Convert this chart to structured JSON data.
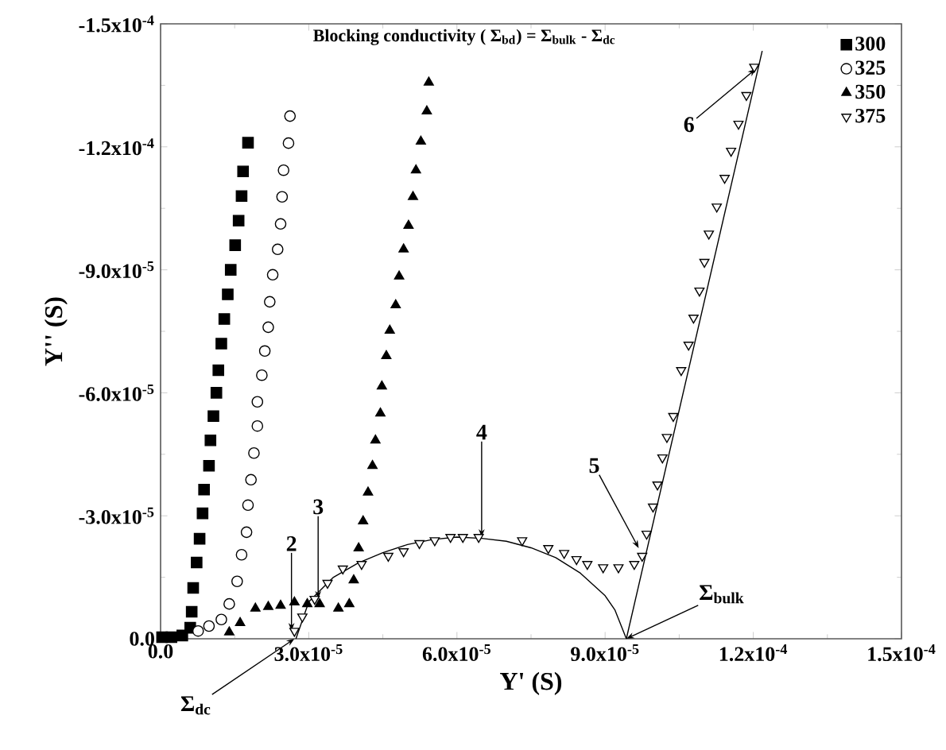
{
  "chart_data": {
    "type": "scatter",
    "title": "Blocking conductivity ( Σ$_{bd}$) = Σ$_{bulk}$ - Σ$_{dc}$",
    "xlabel": "Y' (S)",
    "ylabel": "Y'' (S)",
    "xlim": [
      0,
      0.00015
    ],
    "ylim": [
      0,
      -0.00015
    ],
    "xticks": [
      {
        "value": 0,
        "label": "0.0"
      },
      {
        "value": 3e-05,
        "label": "3.0x10$^{-5}$"
      },
      {
        "value": 6e-05,
        "label": "6.0x10$^{-5}$"
      },
      {
        "value": 9e-05,
        "label": "9.0x10$^{-5}$"
      },
      {
        "value": 0.00012,
        "label": "1.2x10$^{-4}$"
      },
      {
        "value": 0.00015,
        "label": "1.5x10$^{-4}$"
      }
    ],
    "yticks": [
      {
        "value": 0,
        "label": "0.0"
      },
      {
        "value": -3e-05,
        "label": "-3.0x10$^{-5}$"
      },
      {
        "value": -6e-05,
        "label": "-6.0x10$^{-5}$"
      },
      {
        "value": -9e-05,
        "label": "-9.0x10$^{-5}$"
      },
      {
        "value": -0.00012,
        "label": "-1.2x10$^{-4}$"
      },
      {
        "value": -0.00015,
        "label": "-1.5x10$^{-4}$"
      }
    ],
    "legend": "top right",
    "series": [
      {
        "name": "300",
        "color": "#000000",
        "marker": "square",
        "x": [
          1.77e-05,
          1.67e-05,
          1.64e-05,
          1.58e-05,
          1.51e-05,
          1.42e-05,
          1.36e-05,
          1.29e-05,
          1.23e-05,
          1.17e-05,
          1.13e-05,
          1.07e-05,
          1.01e-05,
          9.8e-06,
          8.8e-06,
          8.5e-06,
          7.9e-06,
          7.3e-06,
          6.6e-06,
          6.3e-06,
          6e-06,
          4.4e-06,
          2.2e-06,
          3e-07
        ],
        "values": [
          -0.000121,
          -0.000114,
          -0.000108,
          -0.000102,
          -9.6e-05,
          -9e-05,
          -8.4e-05,
          -7.8e-05,
          -7.2e-05,
          -6.55e-05,
          -6e-05,
          -5.43e-05,
          -4.84e-05,
          -4.22e-05,
          -3.64e-05,
          -3.06e-05,
          -2.44e-05,
          -1.86e-05,
          -1.24e-05,
          -6.6e-06,
          -2.7e-06,
          -8e-07,
          -4e-07,
          -4e-07
        ]
      },
      {
        "name": "325",
        "color": "#ffffff",
        "marker": "circle",
        "x": [
          2.62e-05,
          2.59e-05,
          2.49e-05,
          2.46e-05,
          2.43e-05,
          2.37e-05,
          2.27e-05,
          2.21e-05,
          2.18e-05,
          2.11e-05,
          2.05e-05,
          1.96e-05,
          1.96e-05,
          1.89e-05,
          1.83e-05,
          1.77e-05,
          1.74e-05,
          1.64e-05,
          1.55e-05,
          1.39e-05,
          1.23e-05,
          9.8e-06,
          7.6e-06
        ],
        "values": [
          -0.0001275,
          -0.0001209,
          -0.0001143,
          -0.0001078,
          -0.0001012,
          -9.5e-05,
          -8.88e-05,
          -8.22e-05,
          -7.6e-05,
          -7.02e-05,
          -6.43e-05,
          -5.78e-05,
          -5.19e-05,
          -4.53e-05,
          -3.88e-05,
          -3.26e-05,
          -2.6e-05,
          -2.05e-05,
          -1.4e-05,
          -8.5e-06,
          -4.7e-06,
          -3.1e-06,
          -1.9e-06
        ]
      },
      {
        "name": "350",
        "color": "#000000",
        "marker": "triangle",
        "x": [
          5.43e-05,
          5.39e-05,
          5.27e-05,
          5.17e-05,
          5.11e-05,
          5.02e-05,
          4.92e-05,
          4.83e-05,
          4.76e-05,
          4.64e-05,
          4.57e-05,
          4.48e-05,
          4.45e-05,
          4.35e-05,
          4.29e-05,
          4.2e-05,
          4.1e-05,
          4.01e-05,
          3.91e-05,
          3.82e-05,
          3.6e-05,
          3.22e-05,
          2.97e-05,
          2.71e-05,
          2.43e-05,
          2.18e-05,
          1.92e-05,
          1.61e-05,
          1.39e-05
        ],
        "values": [
          -0.0001357,
          -0.0001287,
          -0.0001213,
          -0.0001143,
          -0.0001078,
          -0.0001008,
          -9.5e-05,
          -8.84e-05,
          -8.14e-05,
          -7.52e-05,
          -6.9e-05,
          -6.16e-05,
          -5.5e-05,
          -4.84e-05,
          -4.22e-05,
          -3.57e-05,
          -2.87e-05,
          -2.21e-05,
          -1.43e-05,
          -8.5e-06,
          -7.4e-06,
          -8.5e-06,
          -8.5e-06,
          -8.9e-06,
          -8.1e-06,
          -7.8e-06,
          -7.4e-06,
          -3.9e-06,
          -1.6e-06
        ]
      },
      {
        "name": "375",
        "color": "#ffffff",
        "marker": "triangle-down",
        "x": [
          2.71e-05,
          2.87e-05,
          3.12e-05,
          3.38e-05,
          3.69e-05,
          4.07e-05,
          4.61e-05,
          4.92e-05,
          5.24e-05,
          5.55e-05,
          5.87e-05,
          6.12e-05,
          6.44e-05,
          7.32e-05,
          7.85e-05,
          8.17e-05,
          8.42e-05,
          8.64e-05,
          8.96e-05,
          9.27e-05,
          9.59e-05,
          9.75e-05,
          9.84e-05,
          9.97e-05,
          0.0001006,
          0.0001016,
          0.0001025,
          0.0001038,
          0.0001054,
          0.0001069,
          0.0001079,
          0.0001091,
          0.0001101,
          0.000111,
          0.0001126,
          0.0001142,
          0.0001155,
          0.000117,
          0.0001186,
          0.0001202
        ],
        "values": [
          -1.9e-06,
          -5.4e-06,
          -9.7e-06,
          -1.36e-05,
          -1.71e-05,
          -1.82e-05,
          -2.02e-05,
          -2.13e-05,
          -2.33e-05,
          -2.4e-05,
          -2.48e-05,
          -2.48e-05,
          -2.48e-05,
          -2.4e-05,
          -2.21e-05,
          -2.09e-05,
          -1.94e-05,
          -1.82e-05,
          -1.74e-05,
          -1.74e-05,
          -1.82e-05,
          -2.02e-05,
          -2.56e-05,
          -3.22e-05,
          -3.76e-05,
          -4.42e-05,
          -4.92e-05,
          -5.43e-05,
          -6.55e-05,
          -7.17e-05,
          -7.83e-05,
          -8.49e-05,
          -9.19e-05,
          -9.88e-05,
          -0.0001054,
          -0.0001124,
          -0.000119,
          -0.0001256,
          -0.0001326,
          -0.0001395
        ]
      },
      {
        "type": "line",
        "color": "#000000",
        "marker": "none",
        "x": [
          2.74e-05,
          3e-05,
          3.5e-05,
          4e-05,
          4.5e-05,
          5e-05,
          5.5e-05,
          6e-05,
          6.5e-05,
          7e-05,
          7.5e-05,
          8e-05,
          8.5e-05,
          9e-05,
          9.2e-05,
          9.43e-05
        ],
        "values": [
          0,
          -9e-06,
          -1.5e-05,
          -1.85e-05,
          -2.1e-05,
          -2.3e-05,
          -2.42e-05,
          -2.48e-05,
          -2.45e-05,
          -2.38e-05,
          -2.22e-05,
          -1.98e-05,
          -1.6e-05,
          -1.05e-05,
          -7e-06,
          0
        ]
      },
      {
        "type": "line",
        "color": "#000000",
        "marker": "none",
        "x": [
          9.43e-05,
          0.0001218
        ],
        "values": [
          0,
          -0.0001434
        ]
      }
    ],
    "annotations": [
      {
        "text": "2",
        "x": 2.65e-05,
        "y": -1.9e-06
      },
      {
        "text": "3",
        "x": 3.19e-05,
        "y": -9.7e-06
      },
      {
        "text": "4",
        "x": 6.5e-05,
        "y": -2.48e-05
      },
      {
        "text": "5",
        "x": 9.68e-05,
        "y": -2.21e-05
      },
      {
        "text": "6",
        "x": 0.0001205,
        "y": -0.000139
      },
      {
        "text": "Σ$_{dc}$",
        "x": 2.71e-05,
        "y": 0
      },
      {
        "text": "Σ$_{bulk}$",
        "x": 9.43e-05,
        "y": 0
      }
    ]
  }
}
